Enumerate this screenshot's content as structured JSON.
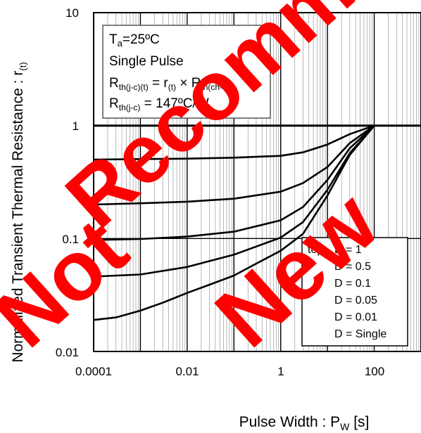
{
  "chart_data": {
    "type": "line",
    "x_scale": "log",
    "y_scale": "log",
    "xlim": [
      0.0001,
      1000
    ],
    "ylim": [
      0.01,
      10
    ],
    "grid": true,
    "xlabel": "Pulse Width : P",
    "xlabel_sub": "W",
    "xlabel_unit": " [s]",
    "ylabel": "Normalized Transient Thermal Resistance : r",
    "ylabel_sub": "(t)",
    "x_ticks": [
      "0.0001",
      "0.01",
      "1",
      "100"
    ],
    "y_ticks": [
      "10",
      "1",
      "0.1",
      "0.01"
    ],
    "annotation": {
      "line1_main": "T",
      "line1_sub": "a",
      "line1_rest": "=25ºC",
      "line2": "Single Pulse",
      "line3_a": "R",
      "line3_a_sub": "th(j-c)(t)",
      "line3_b": " = r",
      "line3_b_sub": "(t)",
      "line3_c": " × R",
      "line3_c_sub": "th(ch-c)",
      "line4_a": "R",
      "line4_a_sub": "th(j-c)",
      "line4_b": " = 147ºC/W"
    },
    "legend_position": "bottom-right",
    "legend_prefix": "top",
    "series": [
      {
        "name": "D = 1",
        "x": [
          0.0001,
          1000
        ],
        "y": [
          1,
          1
        ]
      },
      {
        "name": "D = 0.5",
        "x": [
          0.0001,
          0.001,
          0.01,
          0.1,
          1,
          3,
          10,
          30,
          100
        ],
        "y": [
          0.5,
          0.505,
          0.51,
          0.52,
          0.54,
          0.58,
          0.68,
          0.84,
          1.0
        ]
      },
      {
        "name": "D = 0.1",
        "x": [
          0.0001,
          0.001,
          0.01,
          0.1,
          1,
          3,
          10,
          30,
          100
        ],
        "y": [
          0.2,
          0.205,
          0.212,
          0.225,
          0.26,
          0.31,
          0.43,
          0.7,
          1.0
        ]
      },
      {
        "name": "D = 0.05",
        "x": [
          0.0001,
          0.001,
          0.01,
          0.1,
          1,
          3,
          10,
          30,
          100
        ],
        "y": [
          0.097,
          0.099,
          0.104,
          0.115,
          0.145,
          0.19,
          0.33,
          0.63,
          1.0
        ]
      },
      {
        "name": "D = 0.01",
        "x": [
          0.0001,
          0.001,
          0.01,
          0.1,
          1,
          3,
          10,
          30,
          100
        ],
        "y": [
          0.046,
          0.048,
          0.056,
          0.072,
          0.102,
          0.14,
          0.27,
          0.57,
          1.0
        ]
      },
      {
        "name": "D = Single",
        "x": [
          0.0001,
          0.0003,
          0.001,
          0.003,
          0.01,
          0.03,
          0.1,
          0.3,
          1,
          3,
          10,
          30,
          100
        ],
        "y": [
          0.019,
          0.02,
          0.023,
          0.027,
          0.033,
          0.039,
          0.047,
          0.06,
          0.078,
          0.11,
          0.24,
          0.55,
          1.0
        ]
      }
    ]
  },
  "watermark": {
    "word1": "Not",
    "word2": "Recommended",
    "word3": "New",
    "color": "#ff0000"
  }
}
